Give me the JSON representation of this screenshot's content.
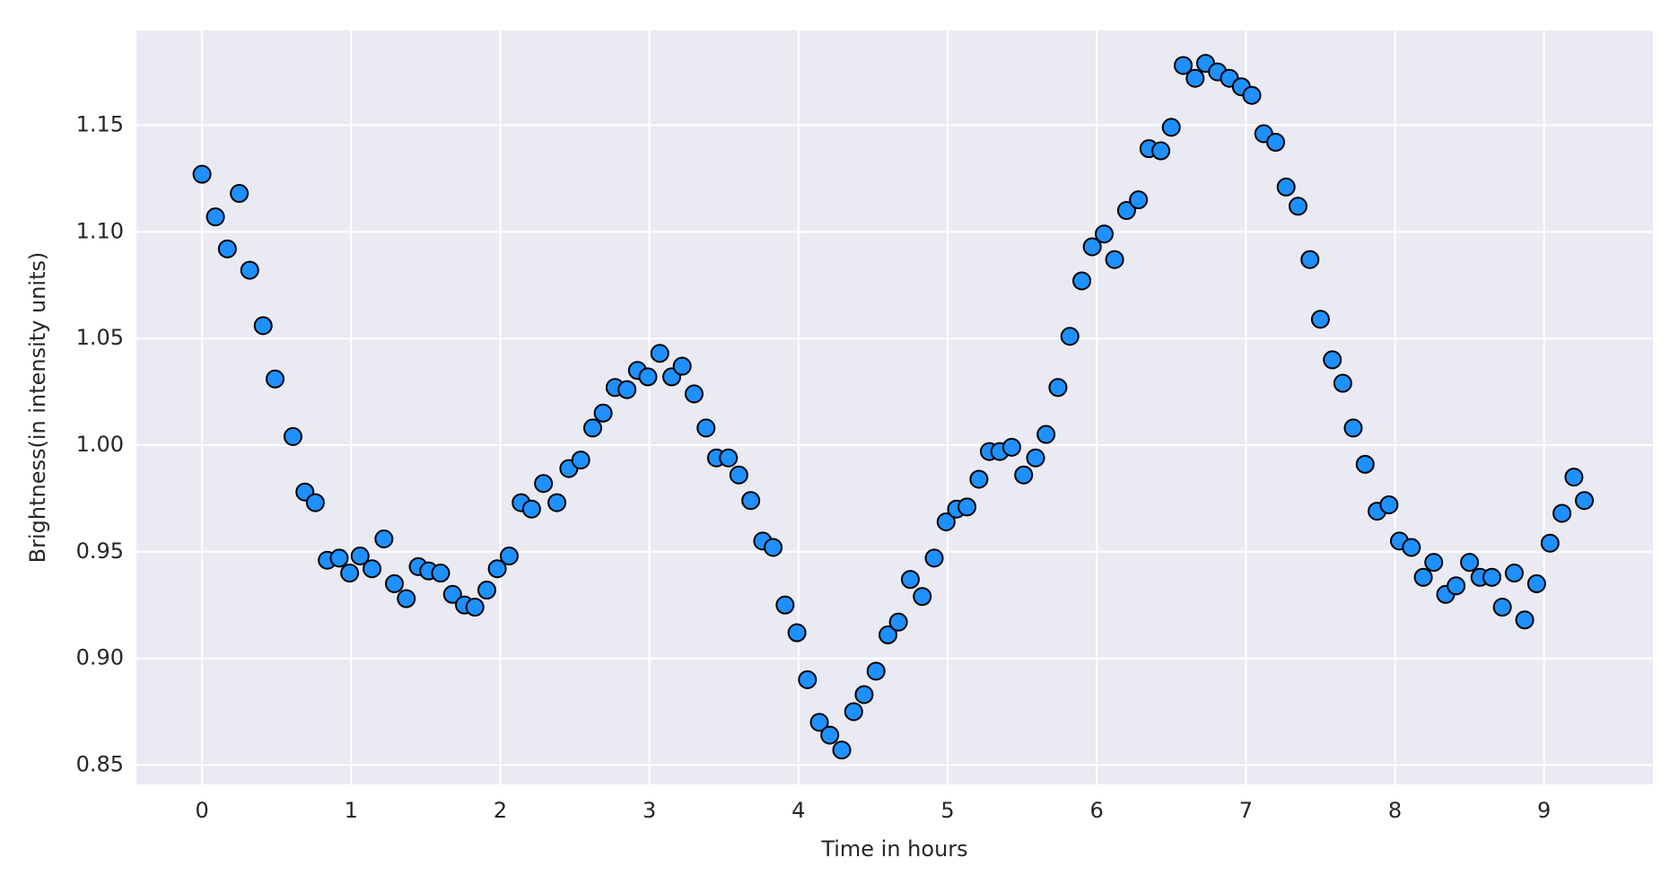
{
  "chart_data": {
    "type": "scatter",
    "x_label": "Time in hours",
    "y_label": "Brightness(in intensity units)",
    "color": "#1e90ff",
    "edge_color": "#000000",
    "grid": true,
    "xlim": [
      -0.44,
      9.73
    ],
    "ylim": [
      0.8409,
      1.1944
    ],
    "xticks": [
      0,
      1,
      2,
      3,
      4,
      5,
      6,
      7,
      8,
      9
    ],
    "yticks": [
      0.85,
      {
        "value": 0.9,
        "label": "0.90"
      },
      0.95,
      {
        "value": 1.0,
        "label": "1.00"
      },
      1.05,
      {
        "value": 1.1,
        "label": "1.10"
      },
      1.15
    ],
    "x": [
      0.0,
      0.09,
      0.17,
      0.25,
      0.32,
      0.41,
      0.49,
      0.61,
      0.69,
      0.76,
      0.84,
      0.92,
      0.99,
      1.06,
      1.14,
      1.22,
      1.29,
      1.37,
      1.45,
      1.52,
      1.6,
      1.68,
      1.76,
      1.83,
      1.91,
      1.98,
      2.06,
      2.14,
      2.21,
      2.29,
      2.38,
      2.46,
      2.54,
      2.62,
      2.69,
      2.77,
      2.85,
      2.92,
      2.99,
      3.07,
      3.15,
      3.22,
      3.3,
      3.38,
      3.45,
      3.53,
      3.6,
      3.68,
      3.76,
      3.83,
      3.91,
      3.99,
      4.06,
      4.14,
      4.21,
      4.29,
      4.37,
      4.44,
      4.52,
      4.6,
      4.67,
      4.75,
      4.83,
      4.91,
      4.99,
      5.06,
      5.13,
      5.21,
      5.28,
      5.35,
      5.43,
      5.51,
      5.59,
      5.66,
      5.74,
      5.82,
      5.9,
      5.97,
      6.05,
      6.12,
      6.2,
      6.28,
      6.35,
      6.43,
      6.5,
      6.58,
      6.66,
      6.73,
      6.81,
      6.89,
      6.97,
      7.04,
      7.12,
      7.2,
      7.27,
      7.35,
      7.43,
      7.5,
      7.58,
      7.65,
      7.72,
      7.8,
      7.88,
      7.96,
      8.03,
      8.11,
      8.19,
      8.26,
      8.34,
      8.41,
      8.5,
      8.57,
      8.65,
      8.72,
      8.8,
      8.87,
      8.95,
      9.04,
      9.12,
      9.2,
      9.27
    ],
    "values": [
      1.127,
      1.107,
      1.092,
      1.118,
      1.082,
      1.056,
      1.031,
      1.004,
      0.978,
      0.973,
      0.946,
      0.947,
      0.94,
      0.948,
      0.942,
      0.956,
      0.935,
      0.928,
      0.943,
      0.941,
      0.94,
      0.93,
      0.925,
      0.924,
      0.932,
      0.942,
      0.948,
      0.973,
      0.97,
      0.982,
      0.973,
      0.989,
      0.993,
      1.008,
      1.015,
      1.027,
      1.026,
      1.035,
      1.032,
      1.043,
      1.032,
      1.037,
      1.024,
      1.008,
      0.994,
      0.994,
      0.986,
      0.974,
      0.955,
      0.952,
      0.925,
      0.912,
      0.89,
      0.87,
      0.864,
      0.857,
      0.875,
      0.883,
      0.894,
      0.911,
      0.917,
      0.937,
      0.929,
      0.947,
      0.964,
      0.97,
      0.971,
      0.984,
      0.997,
      0.997,
      0.999,
      0.986,
      0.994,
      1.005,
      1.027,
      1.051,
      1.077,
      1.093,
      1.099,
      1.087,
      1.11,
      1.115,
      1.139,
      1.138,
      1.149,
      1.178,
      1.172,
      1.179,
      1.175,
      1.172,
      1.168,
      1.164,
      1.146,
      1.142,
      1.121,
      1.112,
      1.087,
      1.059,
      1.04,
      1.029,
      1.008,
      0.991,
      0.969,
      0.972,
      0.955,
      0.952,
      0.938,
      0.945,
      0.93,
      0.934,
      0.945,
      0.938,
      0.938,
      0.924,
      0.94,
      0.918,
      0.935,
      0.954,
      0.968,
      0.985,
      0.974
    ]
  }
}
